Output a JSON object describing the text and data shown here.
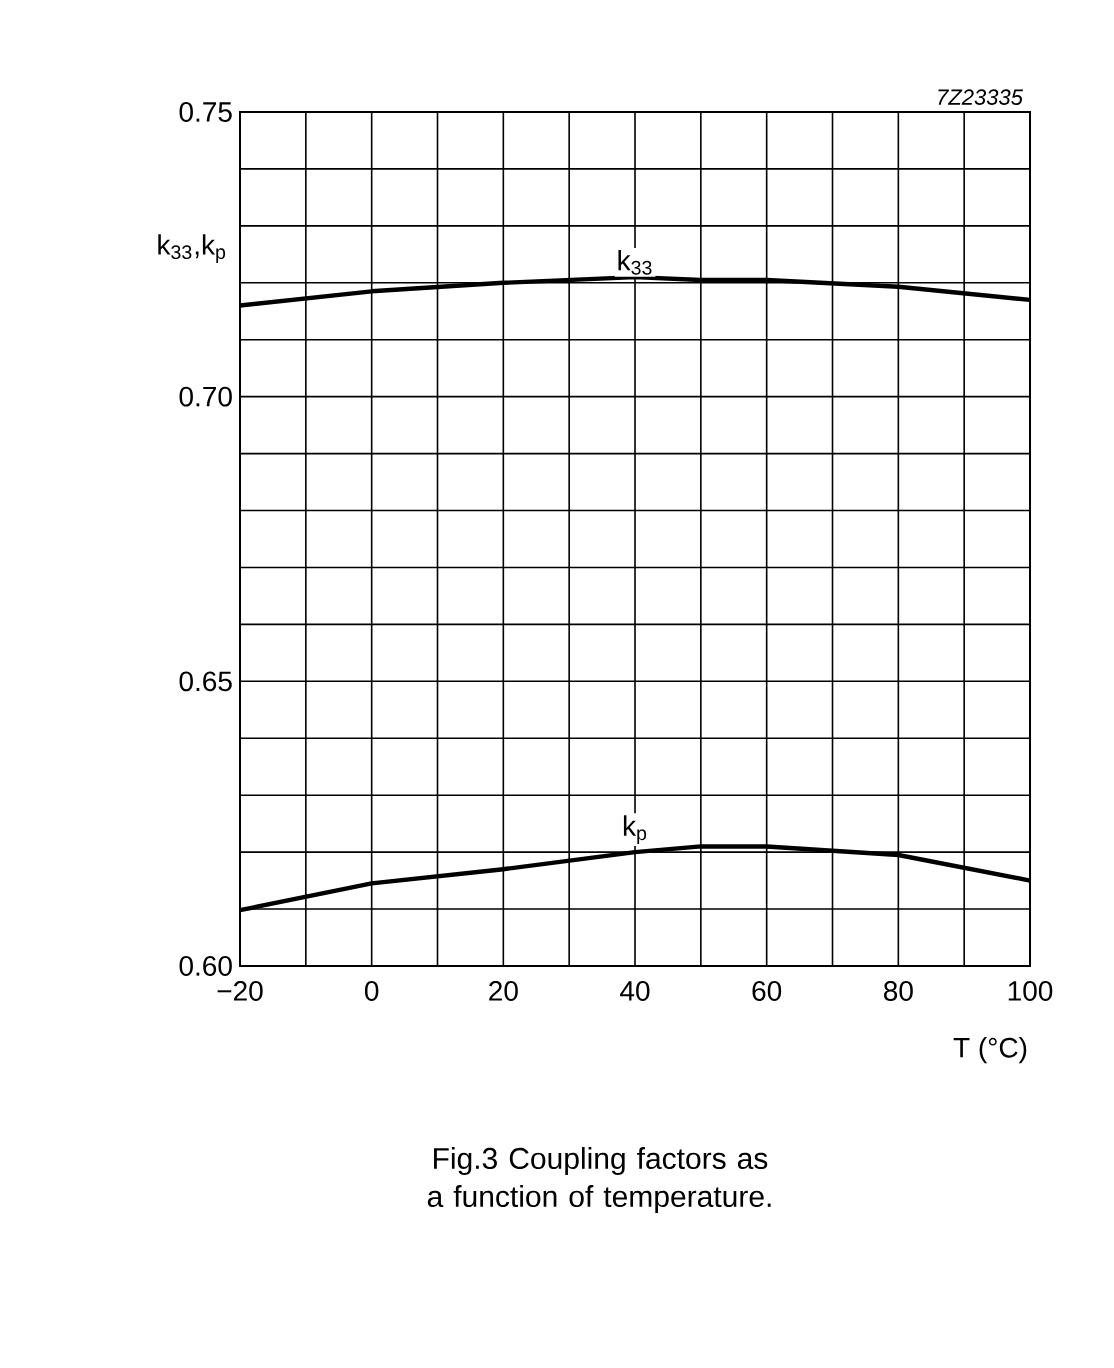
{
  "chart_data": {
    "type": "line",
    "title": "Fig.3 Coupling factors as a function of temperature.",
    "xlabel": "T (°C)",
    "ylabel": "k$_{33}$,k$_{p}$",
    "x": [
      -20,
      0,
      20,
      40,
      50,
      60,
      80,
      100
    ],
    "series": [
      {
        "color": "#000000",
        "values": [
          0.716,
          0.7185,
          0.72,
          0.721,
          0.7205,
          0.7205,
          0.7193,
          0.717
        ]
      },
      {
        "color": "#000000",
        "values": [
          0.6098,
          0.6145,
          0.617,
          0.62,
          0.621,
          0.621,
          0.6195,
          0.615
        ]
      }
    ],
    "annotations": [
      {
        "text": "k$_{33}$",
        "x": 40,
        "y": 0.721
      },
      {
        "text": "k$_{p}$",
        "x": 40,
        "y": 0.621
      },
      "7Z23335"
    ],
    "xlim": [
      -20,
      100
    ],
    "ylim": [
      0.6,
      0.75
    ],
    "xticks": [
      {
        "value": -20,
        "label": "−20"
      },
      0,
      20,
      40,
      60,
      80,
      100
    ],
    "yticks": [
      {
        "value": 0.6,
        "label": "0.60"
      },
      0.65,
      {
        "value": 0.7,
        "label": "0.70"
      },
      0.75
    ],
    "grid": true,
    "marker": "none",
    "line_style": "solid"
  }
}
